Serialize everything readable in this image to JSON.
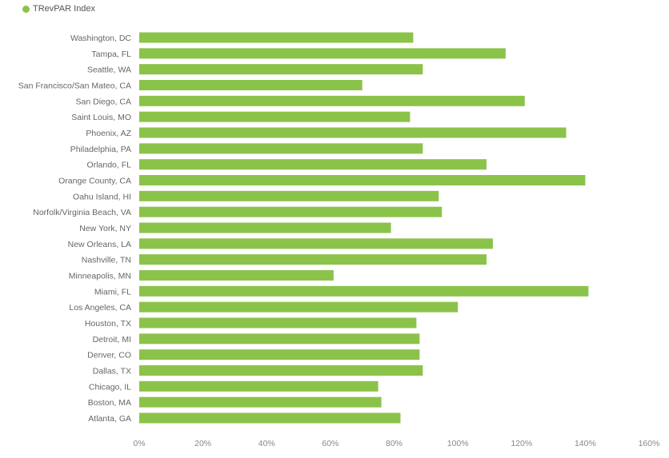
{
  "chart_data": {
    "type": "bar",
    "orientation": "horizontal",
    "title": "",
    "xlabel": "",
    "ylabel": "",
    "categories": [
      "Washington, DC",
      "Tampa, FL",
      "Seattle, WA",
      "San Francisco/San Mateo, CA",
      "San Diego, CA",
      "Saint Louis, MO",
      "Phoenix, AZ",
      "Philadelphia, PA",
      "Orlando, FL",
      "Orange County, CA",
      "Oahu Island, HI",
      "Norfolk/Virginia Beach, VA",
      "New York, NY",
      "New Orleans, LA",
      "Nashville, TN",
      "Minneapolis, MN",
      "Miami, FL",
      "Los Angeles, CA",
      "Houston, TX",
      "Detroit, MI",
      "Denver, CO",
      "Dallas, TX",
      "Chicago, IL",
      "Boston, MA",
      "Atlanta, GA"
    ],
    "series": [
      {
        "name": "TRevPAR Index",
        "color": "#8bc34a",
        "values": [
          86,
          115,
          89,
          70,
          121,
          85,
          134,
          89,
          109,
          140,
          94,
          95,
          79,
          111,
          109,
          61,
          141,
          100,
          87,
          88,
          88,
          89,
          75,
          76,
          82
        ]
      }
    ],
    "xlim": [
      0,
      160
    ],
    "x_ticks": [
      "0%",
      "20%",
      "40%",
      "60%",
      "80%",
      "100%",
      "120%",
      "140%",
      "160%"
    ],
    "grid": false,
    "legend_position": "top-left"
  }
}
